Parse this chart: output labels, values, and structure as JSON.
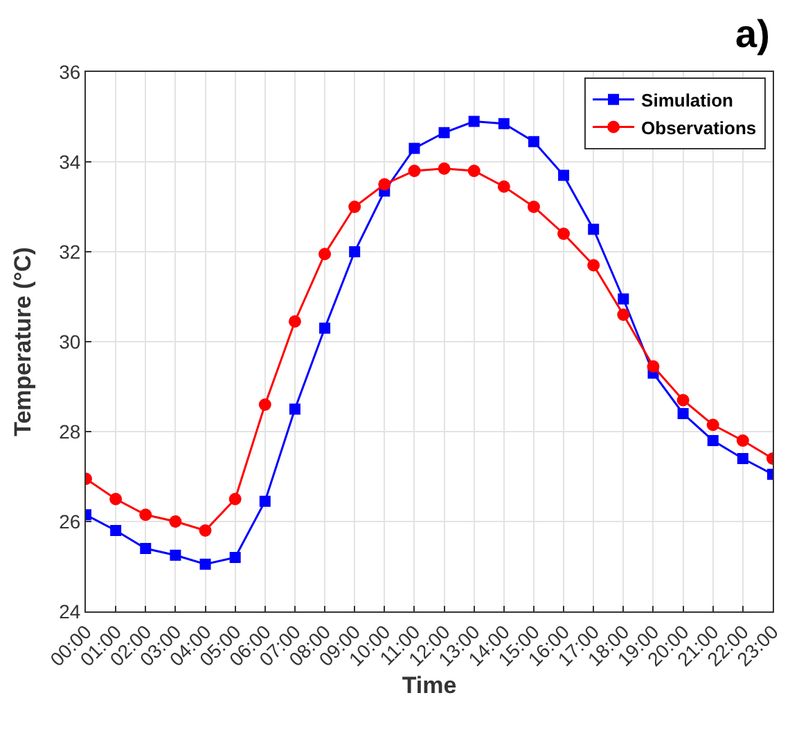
{
  "chart_data": {
    "type": "line",
    "xlabel": "Time",
    "ylabel": "Temperature (°C)",
    "categories": [
      "00:00",
      "01:00",
      "02:00",
      "03:00",
      "04:00",
      "05:00",
      "06:00",
      "07:00",
      "08:00",
      "09:00",
      "10:00",
      "11:00",
      "12:00",
      "13:00",
      "14:00",
      "15:00",
      "16:00",
      "17:00",
      "18:00",
      "19:00",
      "20:00",
      "21:00",
      "22:00",
      "23:00"
    ],
    "series": [
      {
        "name": "Simulation",
        "color": "#0000ff",
        "marker": "square",
        "values": [
          26.15,
          25.8,
          25.4,
          25.25,
          25.05,
          25.2,
          26.45,
          28.5,
          30.3,
          32.0,
          33.35,
          34.3,
          34.65,
          34.9,
          34.85,
          34.45,
          33.7,
          32.5,
          30.95,
          29.3,
          28.4,
          27.8,
          27.4,
          27.05
        ]
      },
      {
        "name": "Observations",
        "color": "#ff0000",
        "marker": "circle",
        "values": [
          26.95,
          26.5,
          26.15,
          26.0,
          25.8,
          26.5,
          28.6,
          30.45,
          31.95,
          33.0,
          33.5,
          33.8,
          33.85,
          33.8,
          33.45,
          33.0,
          32.4,
          31.7,
          30.6,
          29.45,
          28.7,
          28.15,
          27.8,
          27.4
        ]
      }
    ],
    "ylim": [
      24,
      36
    ],
    "yticks": [
      24,
      26,
      28,
      30,
      32,
      34,
      36
    ],
    "grid": true,
    "legend": "top right",
    "line_style": "solid",
    "annotations": [
      "a)"
    ]
  }
}
